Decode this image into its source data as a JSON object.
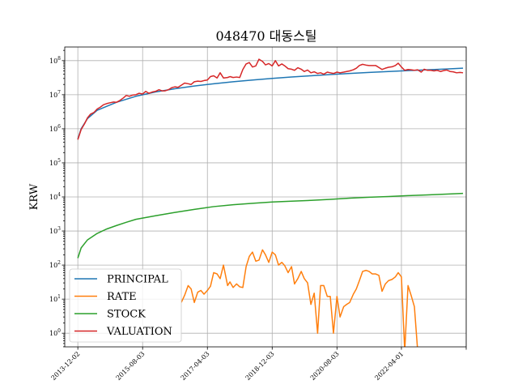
{
  "chart_data": {
    "type": "line",
    "title": "048470 대동스틸",
    "xlabel": "",
    "ylabel": "KRW",
    "yscale": "log",
    "ylim_exp": [
      -0.4,
      8.4
    ],
    "yticks": [
      {
        "label": "10^0",
        "base": "10",
        "exp": "0",
        "value": 1
      },
      {
        "label": "10^1",
        "base": "10",
        "exp": "1",
        "value": 10
      },
      {
        "label": "10^2",
        "base": "10",
        "exp": "2",
        "value": 100
      },
      {
        "label": "10^3",
        "base": "10",
        "exp": "3",
        "value": 1000
      },
      {
        "label": "10^4",
        "base": "10",
        "exp": "4",
        "value": 10000
      },
      {
        "label": "10^5",
        "base": "10",
        "exp": "5",
        "value": 100000
      },
      {
        "label": "10^6",
        "base": "10",
        "exp": "6",
        "value": 1000000
      },
      {
        "label": "10^7",
        "base": "10",
        "exp": "7",
        "value": 10000000
      },
      {
        "label": "10^8",
        "base": "10",
        "exp": "8",
        "value": 100000000
      }
    ],
    "xlim": [
      "2013-08-01",
      "2023-12-01"
    ],
    "xticks": [
      "2013-12-02",
      "2015-08-03",
      "2017-04-03",
      "2018-12-03",
      "2020-08-03",
      "2022-04-01",
      "2023-12-01"
    ],
    "xtick_labels": [
      "2013-12-02",
      "2015-08-03",
      "2017-04-03",
      "2018-12-03",
      "2020-08-03",
      "2022-04-01",
      ""
    ],
    "grid": true,
    "legend_position": "lower-left",
    "legend": [
      "PRINCIPAL",
      "RATE",
      "STOCK",
      "VALUATION"
    ],
    "series": [
      {
        "name": "PRINCIPAL",
        "color": "#1f77b4",
        "points": [
          [
            "2013-12-02",
            500000
          ],
          [
            "2014-01-02",
            1000000
          ],
          [
            "2014-03-03",
            2000000
          ],
          [
            "2014-06-02",
            3500000
          ],
          [
            "2014-12-01",
            6000000
          ],
          [
            "2015-06-01",
            9000000
          ],
          [
            "2015-12-01",
            12000000
          ],
          [
            "2016-06-01",
            15000000
          ],
          [
            "2016-12-01",
            18000000
          ],
          [
            "2017-06-01",
            21000000
          ],
          [
            "2017-12-01",
            24000000
          ],
          [
            "2018-06-01",
            27000000
          ],
          [
            "2018-12-03",
            30000000
          ],
          [
            "2019-06-03",
            33000000
          ],
          [
            "2019-12-02",
            36000000
          ],
          [
            "2020-06-01",
            39000000
          ],
          [
            "2020-12-01",
            42000000
          ],
          [
            "2021-06-01",
            45000000
          ],
          [
            "2021-12-01",
            48000000
          ],
          [
            "2022-06-02",
            51000000
          ],
          [
            "2022-12-01",
            54000000
          ],
          [
            "2023-06-01",
            57000000
          ],
          [
            "2023-11-01",
            60000000
          ]
        ]
      },
      {
        "name": "RATE",
        "color": "#ff7f0e",
        "points": [
          [
            "2016-08-01",
            8
          ],
          [
            "2016-09-01",
            13
          ],
          [
            "2016-10-04",
            25
          ],
          [
            "2016-11-01",
            20
          ],
          [
            "2016-12-01",
            8
          ],
          [
            "2017-01-02",
            16
          ],
          [
            "2017-02-01",
            18
          ],
          [
            "2017-03-02",
            14
          ],
          [
            "2017-04-03",
            18
          ],
          [
            "2017-05-02",
            24
          ],
          [
            "2017-06-01",
            60
          ],
          [
            "2017-07-03",
            55
          ],
          [
            "2017-08-01",
            40
          ],
          [
            "2017-09-01",
            100
          ],
          [
            "2017-10-10",
            25
          ],
          [
            "2017-11-01",
            32
          ],
          [
            "2017-12-01",
            22
          ],
          [
            "2018-01-02",
            28
          ],
          [
            "2018-02-01",
            23
          ],
          [
            "2018-03-02",
            22
          ],
          [
            "2018-04-02",
            90
          ],
          [
            "2018-05-02",
            180
          ],
          [
            "2018-06-01",
            240
          ],
          [
            "2018-07-02",
            130
          ],
          [
            "2018-08-01",
            140
          ],
          [
            "2018-09-03",
            280
          ],
          [
            "2018-10-01",
            200
          ],
          [
            "2018-11-01",
            120
          ],
          [
            "2018-12-03",
            240
          ],
          [
            "2019-01-02",
            200
          ],
          [
            "2019-02-01",
            100
          ],
          [
            "2019-03-04",
            120
          ],
          [
            "2019-04-01",
            95
          ],
          [
            "2019-05-02",
            60
          ],
          [
            "2019-06-03",
            90
          ],
          [
            "2019-07-01",
            28
          ],
          [
            "2019-08-01",
            40
          ],
          [
            "2019-09-02",
            65
          ],
          [
            "2019-10-01",
            40
          ],
          [
            "2019-11-01",
            30
          ],
          [
            "2019-12-02",
            7
          ],
          [
            "2020-01-02",
            15
          ],
          [
            "2020-02-03",
            1
          ],
          [
            "2020-03-02",
            25
          ],
          [
            "2020-04-01",
            25
          ],
          [
            "2020-05-04",
            12
          ],
          [
            "2020-06-01",
            12
          ],
          [
            "2020-07-01",
            1
          ],
          [
            "2020-08-03",
            12
          ],
          [
            "2020-09-01",
            3
          ],
          [
            "2020-10-05",
            6
          ],
          [
            "2020-11-02",
            7
          ],
          [
            "2020-12-01",
            8
          ],
          [
            "2021-01-04",
            14
          ],
          [
            "2021-02-01",
            20
          ],
          [
            "2021-03-02",
            35
          ],
          [
            "2021-04-01",
            65
          ],
          [
            "2021-05-03",
            70
          ],
          [
            "2021-06-01",
            65
          ],
          [
            "2021-07-01",
            55
          ],
          [
            "2021-08-02",
            55
          ],
          [
            "2021-09-01",
            50
          ],
          [
            "2021-10-01",
            17
          ],
          [
            "2021-11-01",
            28
          ],
          [
            "2021-12-01",
            35
          ],
          [
            "2022-01-03",
            38
          ],
          [
            "2022-02-03",
            45
          ],
          [
            "2022-03-02",
            60
          ],
          [
            "2022-04-01",
            45
          ],
          [
            "2022-05-02",
            0.3
          ],
          [
            "2022-06-02",
            25
          ],
          [
            "2022-07-01",
            13
          ],
          [
            "2022-08-01",
            6
          ],
          [
            "2022-09-01",
            0.3
          ]
        ]
      },
      {
        "name": "STOCK",
        "color": "#2ca02c",
        "points": [
          [
            "2013-12-02",
            160
          ],
          [
            "2014-01-02",
            320
          ],
          [
            "2014-03-03",
            550
          ],
          [
            "2014-06-02",
            850
          ],
          [
            "2014-09-01",
            1150
          ],
          [
            "2014-12-01",
            1450
          ],
          [
            "2015-03-02",
            1800
          ],
          [
            "2015-06-01",
            2200
          ],
          [
            "2015-12-01",
            2800
          ],
          [
            "2016-06-01",
            3500
          ],
          [
            "2016-12-01",
            4300
          ],
          [
            "2017-06-01",
            5200
          ],
          [
            "2017-12-01",
            5900
          ],
          [
            "2018-06-01",
            6500
          ],
          [
            "2018-12-03",
            7100
          ],
          [
            "2019-06-03",
            7500
          ],
          [
            "2019-12-02",
            7900
          ],
          [
            "2020-06-01",
            8500
          ],
          [
            "2020-12-01",
            9200
          ],
          [
            "2021-06-01",
            9800
          ],
          [
            "2021-12-01",
            10300
          ],
          [
            "2022-06-02",
            10900
          ],
          [
            "2022-12-01",
            11500
          ],
          [
            "2023-06-01",
            12100
          ],
          [
            "2023-11-01",
            12700
          ]
        ]
      },
      {
        "name": "VALUATION",
        "color": "#d62728",
        "points": [
          [
            "2013-12-02",
            480000
          ],
          [
            "2014-01-02",
            950000
          ],
          [
            "2014-02-03",
            1400000
          ],
          [
            "2014-03-03",
            2100000
          ],
          [
            "2014-04-01",
            2700000
          ],
          [
            "2014-05-02",
            3000000
          ],
          [
            "2014-06-02",
            3800000
          ],
          [
            "2014-07-01",
            4300000
          ],
          [
            "2014-08-01",
            5100000
          ],
          [
            "2014-09-01",
            5500000
          ],
          [
            "2014-10-01",
            5800000
          ],
          [
            "2014-11-03",
            6100000
          ],
          [
            "2014-12-01",
            6000000
          ],
          [
            "2015-01-02",
            6800000
          ],
          [
            "2015-02-02",
            8000000
          ],
          [
            "2015-03-02",
            9500000
          ],
          [
            "2015-04-01",
            9000000
          ],
          [
            "2015-05-04",
            9800000
          ],
          [
            "2015-06-01",
            10000000
          ],
          [
            "2015-07-01",
            11000000
          ],
          [
            "2015-08-03",
            10500000
          ],
          [
            "2015-09-01",
            12500000
          ],
          [
            "2015-10-01",
            11000000
          ],
          [
            "2015-11-02",
            12000000
          ],
          [
            "2015-12-01",
            12500000
          ],
          [
            "2016-01-04",
            14000000
          ],
          [
            "2016-02-01",
            13000000
          ],
          [
            "2016-03-02",
            13000000
          ],
          [
            "2016-04-01",
            14000000
          ],
          [
            "2016-05-02",
            16000000
          ],
          [
            "2016-06-01",
            17000000
          ],
          [
            "2016-07-01",
            16500000
          ],
          [
            "2016-08-01",
            19000000
          ],
          [
            "2016-09-01",
            22000000
          ],
          [
            "2016-10-04",
            21000000
          ],
          [
            "2016-11-01",
            20000000
          ],
          [
            "2016-12-01",
            24000000
          ],
          [
            "2017-01-02",
            25000000
          ],
          [
            "2017-02-01",
            24500000
          ],
          [
            "2017-03-02",
            26000000
          ],
          [
            "2017-04-03",
            27000000
          ],
          [
            "2017-05-02",
            34000000
          ],
          [
            "2017-06-01",
            36000000
          ],
          [
            "2017-07-03",
            31000000
          ],
          [
            "2017-08-01",
            44000000
          ],
          [
            "2017-09-01",
            31000000
          ],
          [
            "2017-10-10",
            32000000
          ],
          [
            "2017-11-01",
            34000000
          ],
          [
            "2017-12-01",
            32000000
          ],
          [
            "2018-01-02",
            33000000
          ],
          [
            "2018-02-01",
            32000000
          ],
          [
            "2018-03-02",
            55000000
          ],
          [
            "2018-04-02",
            80000000
          ],
          [
            "2018-05-02",
            88000000
          ],
          [
            "2018-06-01",
            65000000
          ],
          [
            "2018-07-02",
            70000000
          ],
          [
            "2018-08-01",
            110000000
          ],
          [
            "2018-09-03",
            95000000
          ],
          [
            "2018-10-01",
            75000000
          ],
          [
            "2018-11-01",
            82000000
          ],
          [
            "2018-12-03",
            70000000
          ],
          [
            "2019-01-02",
            100000000
          ],
          [
            "2019-02-01",
            70000000
          ],
          [
            "2019-03-04",
            80000000
          ],
          [
            "2019-04-01",
            70000000
          ],
          [
            "2019-05-02",
            58000000
          ],
          [
            "2019-06-03",
            56000000
          ],
          [
            "2019-07-01",
            52000000
          ],
          [
            "2019-08-01",
            62000000
          ],
          [
            "2019-09-02",
            56000000
          ],
          [
            "2019-10-01",
            48000000
          ],
          [
            "2019-11-01",
            53000000
          ],
          [
            "2019-12-02",
            44000000
          ],
          [
            "2020-01-02",
            47000000
          ],
          [
            "2020-02-03",
            42000000
          ],
          [
            "2020-03-02",
            44000000
          ],
          [
            "2020-04-01",
            40000000
          ],
          [
            "2020-05-04",
            46000000
          ],
          [
            "2020-06-01",
            44000000
          ],
          [
            "2020-07-01",
            42000000
          ],
          [
            "2020-08-03",
            46000000
          ],
          [
            "2020-09-01",
            44000000
          ],
          [
            "2020-10-05",
            46000000
          ],
          [
            "2020-11-02",
            48000000
          ],
          [
            "2020-12-01",
            50000000
          ],
          [
            "2021-01-04",
            54000000
          ],
          [
            "2021-02-01",
            60000000
          ],
          [
            "2021-03-02",
            72000000
          ],
          [
            "2021-04-01",
            78000000
          ],
          [
            "2021-05-03",
            74000000
          ],
          [
            "2021-06-01",
            72000000
          ],
          [
            "2021-07-01",
            72000000
          ],
          [
            "2021-08-02",
            72000000
          ],
          [
            "2021-09-01",
            63000000
          ],
          [
            "2021-10-01",
            55000000
          ],
          [
            "2021-11-01",
            60000000
          ],
          [
            "2021-12-01",
            64000000
          ],
          [
            "2022-01-03",
            66000000
          ],
          [
            "2022-02-03",
            72000000
          ],
          [
            "2022-03-02",
            84000000
          ],
          [
            "2022-04-01",
            65000000
          ],
          [
            "2022-05-02",
            52000000
          ],
          [
            "2022-06-02",
            55000000
          ],
          [
            "2022-07-01",
            54000000
          ],
          [
            "2022-08-01",
            52000000
          ],
          [
            "2022-09-01",
            54000000
          ],
          [
            "2022-10-04",
            46000000
          ],
          [
            "2022-11-01",
            56000000
          ],
          [
            "2022-12-01",
            52000000
          ],
          [
            "2023-01-02",
            52000000
          ],
          [
            "2023-02-01",
            50000000
          ],
          [
            "2023-03-02",
            52000000
          ],
          [
            "2023-04-03",
            48000000
          ],
          [
            "2023-05-02",
            51000000
          ],
          [
            "2023-06-01",
            53000000
          ],
          [
            "2023-07-03",
            48000000
          ],
          [
            "2023-08-01",
            47000000
          ],
          [
            "2023-09-01",
            44000000
          ],
          [
            "2023-10-04",
            45000000
          ],
          [
            "2023-11-01",
            44000000
          ]
        ]
      }
    ]
  }
}
